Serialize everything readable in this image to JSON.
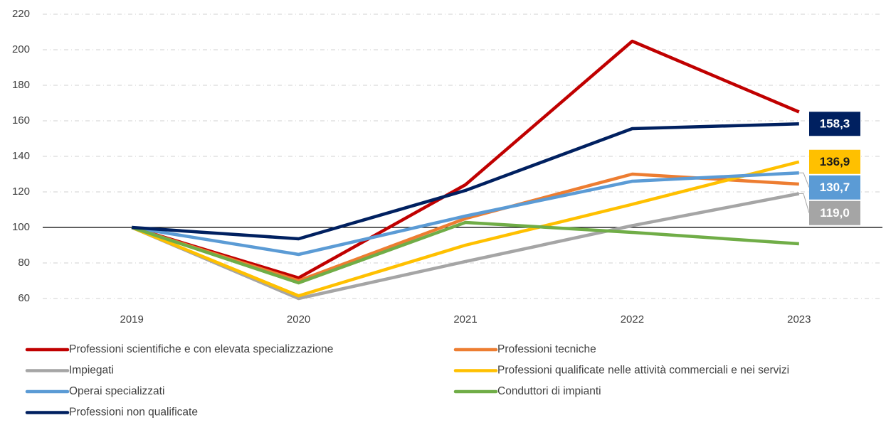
{
  "chart_data": {
    "type": "line",
    "x": [
      "2019",
      "2020",
      "2021",
      "2022",
      "2023"
    ],
    "ylim": [
      60,
      220
    ],
    "yticks": [
      60,
      80,
      100,
      120,
      140,
      160,
      180,
      200,
      220
    ],
    "grid": true,
    "baseline": 100,
    "legend": "bottom",
    "series": [
      {
        "name": "Professioni scientifiche e con elevata specializzazione",
        "color": "#c00000",
        "values": [
          100,
          71.6,
          124,
          204.8,
          165
        ]
      },
      {
        "name": "Professioni tecniche",
        "color": "#ed7d31",
        "values": [
          100,
          70,
          105,
          130,
          124.4
        ]
      },
      {
        "name": "Impiegati",
        "color": "#a5a5a5",
        "values": [
          100,
          60,
          80.8,
          101,
          119.0
        ],
        "value_labels": [
          null,
          null,
          null,
          null,
          "119,0"
        ]
      },
      {
        "name": "Professioni qualificate nelle attività commerciali e nei servizi",
        "color": "#ffc000",
        "values": [
          100,
          61.5,
          90,
          113,
          136.9
        ],
        "value_labels": [
          null,
          null,
          null,
          null,
          "136,9"
        ]
      },
      {
        "name": "Operai specializzati",
        "color": "#5b9bd5",
        "values": [
          100,
          84.8,
          106.4,
          126,
          130.7
        ],
        "value_labels": [
          null,
          null,
          null,
          null,
          "130,7"
        ]
      },
      {
        "name": "Conduttori di impianti",
        "color": "#70ad47",
        "values": [
          100,
          68.8,
          102.8,
          97.2,
          90.8
        ]
      },
      {
        "name": "Professioni non qualificate",
        "color": "#002060",
        "values": [
          100,
          93.6,
          120.8,
          155.6,
          158.3
        ],
        "value_labels": [
          null,
          null,
          null,
          null,
          "158,3"
        ]
      }
    ]
  }
}
